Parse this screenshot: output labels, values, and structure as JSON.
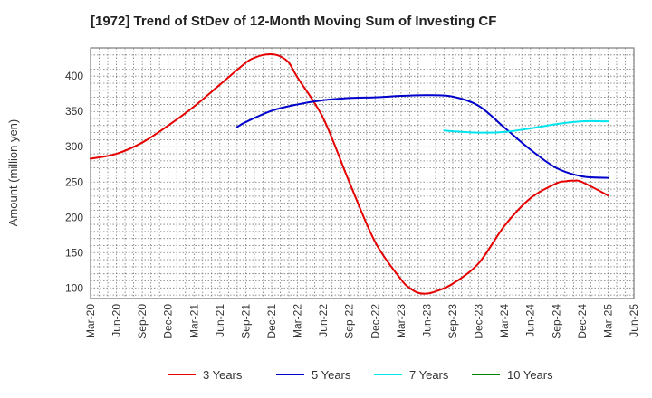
{
  "chart_data": {
    "type": "line",
    "title": "[1972]  Trend of StDev of 12-Month Moving Sum of Investing CF",
    "xlabel": "",
    "ylabel": "Amount (million yen)",
    "ylim": [
      85,
      440
    ],
    "yticks": [
      100,
      150,
      200,
      250,
      300,
      350,
      400
    ],
    "x_ticks": [
      "Mar-20",
      "Jun-20",
      "Sep-20",
      "Dec-20",
      "Mar-21",
      "Jun-21",
      "Sep-21",
      "Dec-21",
      "Mar-22",
      "Jun-22",
      "Sep-22",
      "Dec-22",
      "Mar-23",
      "Jun-23",
      "Sep-23",
      "Dec-23",
      "Mar-24",
      "Jun-24",
      "Sep-24",
      "Dec-24",
      "Mar-25",
      "Jun-25"
    ],
    "grid": true,
    "legend_position": "bottom",
    "series": [
      {
        "name": "3 Years",
        "color": "#e60000",
        "x": [
          "Mar-20",
          "Jun-20",
          "Sep-20",
          "Dec-20",
          "Mar-21",
          "Jun-21",
          "Sep-21",
          "Oct-21",
          "Nov-21",
          "Dec-21",
          "Jan-22",
          "Feb-22",
          "Mar-22",
          "Jun-22",
          "Sep-22",
          "Dec-22",
          "Mar-23",
          "Apr-23",
          "May-23",
          "Jun-23",
          "Jul-23",
          "Sep-23",
          "Dec-23",
          "Mar-24",
          "Jun-24",
          "Sep-24",
          "Oct-24",
          "Nov-24",
          "Dec-24",
          "Mar-25"
        ],
        "values": [
          283,
          290,
          306,
          330,
          357,
          388,
          419,
          426,
          430,
          431,
          428,
          419,
          398,
          340,
          250,
          165,
          112,
          100,
          93,
          92,
          95,
          106,
          135,
          188,
          227,
          248,
          251,
          252,
          250,
          231
        ]
      },
      {
        "name": "5 Years",
        "color": "#0000cc",
        "x": [
          "Aug-21",
          "Sep-21",
          "Dec-21",
          "Mar-22",
          "Jun-22",
          "Sep-22",
          "Dec-22",
          "Mar-23",
          "Jun-23",
          "Sep-23",
          "Dec-23",
          "Mar-24",
          "Jun-24",
          "Sep-24",
          "Dec-24",
          "Mar-25"
        ],
        "values": [
          328,
          335,
          351,
          360,
          366,
          369,
          370,
          372,
          373,
          371,
          358,
          327,
          296,
          270,
          258,
          256
        ]
      },
      {
        "name": "7 Years",
        "color": "#00e5ee",
        "x": [
          "Aug-23",
          "Sep-23",
          "Dec-23",
          "Mar-24",
          "Jun-24",
          "Sep-24",
          "Dec-24",
          "Mar-25"
        ],
        "values": [
          323,
          322,
          320,
          321,
          326,
          332,
          336,
          336
        ]
      },
      {
        "name": "10 Years",
        "color": "#008000",
        "x": [],
        "values": []
      }
    ]
  }
}
